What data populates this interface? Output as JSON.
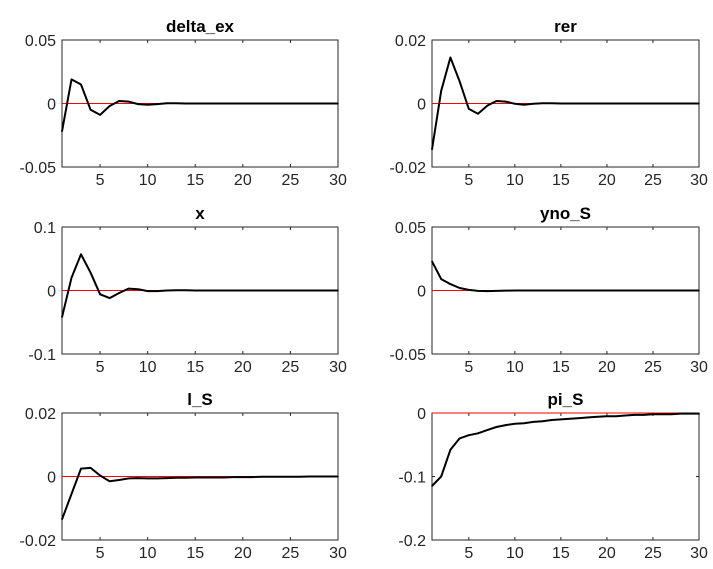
{
  "chart_data": [
    {
      "type": "line",
      "title": "delta_ex",
      "xlim": [
        1,
        30
      ],
      "ylim": [
        -0.05,
        0.05
      ],
      "xticks": [
        5,
        10,
        15,
        20,
        25,
        30
      ],
      "xtick_labels": [
        "5",
        "10",
        "15",
        "20",
        "25",
        "30"
      ],
      "yticks": [
        -0.05,
        0,
        0.05
      ],
      "ytick_labels": [
        "-0.05",
        "0",
        "0.05"
      ],
      "zero_line_color": "#ff0000",
      "series_color": "#000000",
      "x": [
        1,
        2,
        3,
        4,
        5,
        6,
        7,
        8,
        9,
        10,
        11,
        12,
        13,
        14,
        15,
        16,
        17,
        18,
        19,
        20,
        21,
        22,
        23,
        24,
        25,
        26,
        27,
        28,
        29,
        30
      ],
      "values": [
        -0.022,
        0.019,
        0.015,
        -0.005,
        -0.009,
        -0.002,
        0.002,
        0.0015,
        -0.0005,
        -0.001,
        -0.0005,
        0.0002,
        0.0002,
        0,
        0,
        0,
        0,
        0,
        0,
        0,
        0,
        0,
        0,
        0,
        0,
        0,
        0,
        0,
        0,
        0
      ]
    },
    {
      "type": "line",
      "title": "rer",
      "xlim": [
        1,
        30
      ],
      "ylim": [
        -0.02,
        0.02
      ],
      "xticks": [
        5,
        10,
        15,
        20,
        25,
        30
      ],
      "xtick_labels": [
        "5",
        "10",
        "15",
        "20",
        "25",
        "30"
      ],
      "yticks": [
        -0.02,
        0,
        0.02
      ],
      "ytick_labels": [
        "-0.02",
        "0",
        "0.02"
      ],
      "zero_line_color": "#ff0000",
      "series_color": "#000000",
      "x": [
        1,
        2,
        3,
        4,
        5,
        6,
        7,
        8,
        9,
        10,
        11,
        12,
        13,
        14,
        15,
        16,
        17,
        18,
        19,
        20,
        21,
        22,
        23,
        24,
        25,
        26,
        27,
        28,
        29,
        30
      ],
      "values": [
        -0.0145,
        0.004,
        0.0145,
        0.007,
        -0.0017,
        -0.0032,
        -0.0007,
        0.0008,
        0.0006,
        -0.0001,
        -0.0004,
        -0.0001,
        0.0001,
        0.0001,
        0,
        0,
        0,
        0,
        0,
        0,
        0,
        0,
        0,
        0,
        0,
        0,
        0,
        0,
        0,
        0
      ]
    },
    {
      "type": "line",
      "title": "x",
      "xlim": [
        1,
        30
      ],
      "ylim": [
        -0.1,
        0.1
      ],
      "xticks": [
        5,
        10,
        15,
        20,
        25,
        30
      ],
      "xtick_labels": [
        "5",
        "10",
        "15",
        "20",
        "25",
        "30"
      ],
      "yticks": [
        -0.1,
        0,
        0.1
      ],
      "ytick_labels": [
        "-0.1",
        "0",
        "0.1"
      ],
      "zero_line_color": "#ff0000",
      "series_color": "#000000",
      "x": [
        1,
        2,
        3,
        4,
        5,
        6,
        7,
        8,
        9,
        10,
        11,
        12,
        13,
        14,
        15,
        16,
        17,
        18,
        19,
        20,
        21,
        22,
        23,
        24,
        25,
        26,
        27,
        28,
        29,
        30
      ],
      "values": [
        -0.042,
        0.02,
        0.057,
        0.028,
        -0.006,
        -0.012,
        -0.004,
        0.003,
        0.002,
        -0.001,
        -0.001,
        0,
        0.0005,
        0.0005,
        0,
        0,
        0,
        0,
        0,
        0,
        0,
        0,
        0,
        0,
        0,
        0,
        0,
        0,
        0,
        0
      ]
    },
    {
      "type": "line",
      "title": "yno_S",
      "xlim": [
        1,
        30
      ],
      "ylim": [
        -0.05,
        0.05
      ],
      "xticks": [
        5,
        10,
        15,
        20,
        25,
        30
      ],
      "xtick_labels": [
        "5",
        "10",
        "15",
        "20",
        "25",
        "30"
      ],
      "yticks": [
        -0.05,
        0,
        0.05
      ],
      "ytick_labels": [
        "-0.05",
        "0",
        "0.05"
      ],
      "zero_line_color": "#ff0000",
      "series_color": "#000000",
      "x": [
        1,
        2,
        3,
        4,
        5,
        6,
        7,
        8,
        9,
        10,
        11,
        12,
        13,
        14,
        15,
        16,
        17,
        18,
        19,
        20,
        21,
        22,
        23,
        24,
        25,
        26,
        27,
        28,
        29,
        30
      ],
      "values": [
        0.023,
        0.009,
        0.005,
        0.002,
        0.0005,
        -0.0003,
        -0.0005,
        -0.0003,
        -0.0001,
        0,
        0,
        0,
        0,
        0,
        0,
        0,
        0,
        0,
        0,
        0,
        0,
        0,
        0,
        0,
        0,
        0,
        0,
        0,
        0,
        0
      ]
    },
    {
      "type": "line",
      "title": "l_S",
      "xlim": [
        1,
        30
      ],
      "ylim": [
        -0.02,
        0.02
      ],
      "xticks": [
        5,
        10,
        15,
        20,
        25,
        30
      ],
      "xtick_labels": [
        "5",
        "10",
        "15",
        "20",
        "25",
        "30"
      ],
      "yticks": [
        -0.02,
        0,
        0.02
      ],
      "ytick_labels": [
        "-0.02",
        "0",
        "0.02"
      ],
      "zero_line_color": "#ff0000",
      "series_color": "#000000",
      "x": [
        1,
        2,
        3,
        4,
        5,
        6,
        7,
        8,
        9,
        10,
        11,
        12,
        13,
        14,
        15,
        16,
        17,
        18,
        19,
        20,
        21,
        22,
        23,
        24,
        25,
        26,
        27,
        28,
        29,
        30
      ],
      "values": [
        -0.0135,
        -0.0055,
        0.0025,
        0.0027,
        0.0003,
        -0.0015,
        -0.0011,
        -0.0006,
        -0.0005,
        -0.0006,
        -0.0006,
        -0.0005,
        -0.0004,
        -0.0004,
        -0.0003,
        -0.0003,
        -0.0003,
        -0.0003,
        -0.0002,
        -0.0002,
        -0.0002,
        -0.0001,
        -0.0001,
        -0.0001,
        -0.0001,
        -0.0001,
        0,
        0,
        0,
        0
      ]
    },
    {
      "type": "line",
      "title": "pi_S",
      "xlim": [
        1,
        30
      ],
      "ylim": [
        -0.2,
        0
      ],
      "xticks": [
        5,
        10,
        15,
        20,
        25,
        30
      ],
      "xtick_labels": [
        "5",
        "10",
        "15",
        "20",
        "25",
        "30"
      ],
      "yticks": [
        -0.2,
        -0.1,
        0
      ],
      "ytick_labels": [
        "-0.2",
        "-0.1",
        "0"
      ],
      "zero_line_color": "#ff0000",
      "series_color": "#000000",
      "x": [
        1,
        2,
        3,
        4,
        5,
        6,
        7,
        8,
        9,
        10,
        11,
        12,
        13,
        14,
        15,
        16,
        17,
        18,
        19,
        20,
        21,
        22,
        23,
        24,
        25,
        26,
        27,
        28,
        29,
        30
      ],
      "values": [
        -0.115,
        -0.1,
        -0.058,
        -0.04,
        -0.035,
        -0.032,
        -0.027,
        -0.022,
        -0.019,
        -0.017,
        -0.016,
        -0.014,
        -0.013,
        -0.011,
        -0.01,
        -0.009,
        -0.008,
        -0.007,
        -0.006,
        -0.005,
        -0.005,
        -0.004,
        -0.003,
        -0.003,
        -0.002,
        -0.002,
        -0.002,
        -0.001,
        -0.001,
        -0.001
      ]
    }
  ]
}
